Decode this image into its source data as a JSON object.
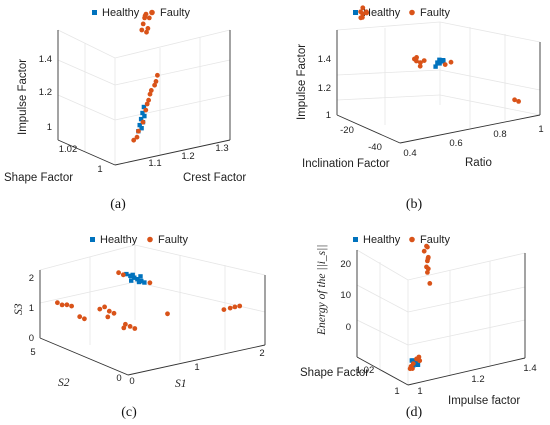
{
  "colors": {
    "healthy": "#0072BD",
    "faulty": "#D95319",
    "axis": "#333333",
    "grid": "#e6e6e6"
  },
  "panel_labels": [
    "(a)",
    "(b)",
    "(c)",
    "(d)"
  ],
  "chart_data": [
    {
      "type": "scatter",
      "panel": "(a)",
      "legend": [
        "Healthy",
        "Faulty"
      ],
      "legend_placement": "top",
      "xlabel": "Crest Factor",
      "ylabel": "Shape Factor",
      "zlabel": "Impulse Factor",
      "xticks": [
        "1.1",
        "1.2",
        "1.3"
      ],
      "yticks": [
        "1",
        "1.02"
      ],
      "zticks": [
        "1",
        "1.2",
        "1.4"
      ],
      "grid": true,
      "series": [
        {
          "name": "Healthy",
          "points": [
            [
              1.1,
              1.005,
              1.0
            ],
            [
              1.11,
              1.006,
              1.02
            ],
            [
              1.12,
              1.007,
              1.04
            ],
            [
              1.13,
              1.008,
              1.06
            ],
            [
              1.14,
              1.009,
              1.08
            ],
            [
              1.12,
              1.006,
              1.03
            ],
            [
              1.11,
              1.005,
              1.01
            ],
            [
              1.13,
              1.007,
              1.05
            ]
          ]
        },
        {
          "name": "Faulty",
          "points": [
            [
              1.09,
              1.004,
              0.98
            ],
            [
              1.1,
              1.005,
              1.0
            ],
            [
              1.12,
              1.006,
              1.03
            ],
            [
              1.14,
              1.008,
              1.07
            ],
            [
              1.16,
              1.01,
              1.1
            ],
            [
              1.18,
              1.012,
              1.13
            ],
            [
              1.2,
              1.013,
              1.16
            ],
            [
              1.17,
              1.011,
              1.12
            ],
            [
              1.15,
              1.009,
              1.09
            ],
            [
              1.19,
              1.012,
              1.15
            ],
            [
              1.08,
              1.004,
              0.97
            ],
            [
              1.21,
              1.014,
              1.18
            ],
            [
              1.19,
              1.018,
              1.4
            ],
            [
              1.2,
              1.019,
              1.42
            ],
            [
              1.21,
              1.02,
              1.43
            ],
            [
              1.18,
              1.017,
              1.38
            ],
            [
              1.22,
              1.02,
              1.41
            ],
            [
              1.2,
              1.018,
              1.36
            ],
            [
              1.21,
              1.019,
              1.37
            ],
            [
              1.19,
              1.017,
              1.44
            ]
          ]
        }
      ]
    },
    {
      "type": "scatter",
      "panel": "(b)",
      "legend": [
        "Healthy",
        "Faulty"
      ],
      "legend_placement": "top",
      "xlabel": "Ratio",
      "ylabel": "Inclination Factor",
      "zlabel": "Impulse Factor",
      "xticks": [
        "0.4",
        "0.6",
        "0.8",
        "1"
      ],
      "yticks": [
        "-40",
        "-20"
      ],
      "zticks": [
        "1",
        "1.2",
        "1.4"
      ],
      "grid": true,
      "series": [
        {
          "name": "Healthy",
          "points": [
            [
              0.55,
              -38,
              1.22
            ],
            [
              0.56,
              -38,
              1.23
            ],
            [
              0.57,
              -37,
              1.21
            ],
            [
              0.58,
              -38,
              1.22
            ],
            [
              0.55,
              -37,
              1.2
            ],
            [
              0.57,
              -39,
              1.23
            ]
          ]
        },
        {
          "name": "Faulty",
          "points": [
            [
              0.4,
              -12,
              1.37
            ],
            [
              0.41,
              -12,
              1.36
            ],
            [
              0.42,
              -11,
              1.38
            ],
            [
              0.4,
              -13,
              1.35
            ],
            [
              0.41,
              -11,
              1.34
            ],
            [
              0.43,
              -12,
              1.36
            ],
            [
              0.42,
              -13,
              1.37
            ],
            [
              0.48,
              -33,
              1.23
            ],
            [
              0.49,
              -33,
              1.22
            ],
            [
              0.5,
              -32,
              1.23
            ],
            [
              0.51,
              -33,
              1.21
            ],
            [
              0.52,
              -34,
              1.22
            ],
            [
              0.5,
              -34,
              1.2
            ],
            [
              0.58,
              -39,
              1.21
            ],
            [
              0.6,
              -40,
              1.22
            ],
            [
              0.9,
              -42,
              1.02
            ],
            [
              0.92,
              -42,
              1.01
            ]
          ]
        }
      ]
    },
    {
      "type": "scatter",
      "panel": "(c)",
      "legend": [
        "Healthy",
        "Faulty"
      ],
      "legend_placement": "top",
      "xlabel": "S1",
      "ylabel": "S2",
      "zlabel": "S3",
      "xticks": [
        "0",
        "1",
        "2"
      ],
      "yticks": [
        "0",
        "5"
      ],
      "zticks": [
        "0",
        "1",
        "2"
      ],
      "grid": true,
      "series": [
        {
          "name": "Healthy",
          "points": [
            [
              0.9,
              3.6,
              1.5
            ],
            [
              0.95,
              3.55,
              1.45
            ],
            [
              1.0,
              3.5,
              1.4
            ],
            [
              1.05,
              3.5,
              1.35
            ],
            [
              1.1,
              3.45,
              1.3
            ],
            [
              1.0,
              3.6,
              1.45
            ],
            [
              0.95,
              3.5,
              1.35
            ],
            [
              1.05,
              3.4,
              1.3
            ],
            [
              1.1,
              3.5,
              1.4
            ],
            [
              1.15,
              3.45,
              1.25
            ]
          ]
        },
        {
          "name": "Faulty",
          "points": [
            [
              0.8,
              3.7,
              1.55
            ],
            [
              0.85,
              3.6,
              1.5
            ],
            [
              1.2,
              3.3,
              1.25
            ],
            [
              0.1,
              4.8,
              0.9
            ],
            [
              0.15,
              4.7,
              0.85
            ],
            [
              0.2,
              4.6,
              0.85
            ],
            [
              0.25,
              4.5,
              0.82
            ],
            [
              0.2,
              3.8,
              0.7
            ],
            [
              0.25,
              3.7,
              0.65
            ],
            [
              0.6,
              3.8,
              0.8
            ],
            [
              0.65,
              3.7,
              0.7
            ],
            [
              0.7,
              3.6,
              0.65
            ],
            [
              0.6,
              3.6,
              0.6
            ],
            [
              0.55,
              3.9,
              0.75
            ],
            [
              0.6,
              2.5,
              0.6
            ],
            [
              0.65,
              2.4,
              0.55
            ],
            [
              0.7,
              2.3,
              0.5
            ],
            [
              0.6,
              2.6,
              0.5
            ],
            [
              1.2,
              2.2,
              0.7
            ],
            [
              1.9,
              1.4,
              0.7
            ],
            [
              1.95,
              1.2,
              0.75
            ],
            [
              2.0,
              1.1,
              0.78
            ],
            [
              2.05,
              1.0,
              0.8
            ]
          ]
        }
      ]
    },
    {
      "type": "scatter",
      "panel": "(d)",
      "legend": [
        "Healthy",
        "Faulty"
      ],
      "legend_placement": "top",
      "xlabel": "Impulse factor",
      "ylabel": "Shape Factor",
      "zlabel": "Energy of the ||i_s||",
      "xticks": [
        "1",
        "1.2",
        "1.4"
      ],
      "yticks": [
        "1",
        "1.02"
      ],
      "zticks": [
        "0",
        "10",
        "20"
      ],
      "grid": true,
      "series": [
        {
          "name": "Healthy",
          "points": [
            [
              1.01,
              1.001,
              0.5
            ],
            [
              1.02,
              1.002,
              0.8
            ],
            [
              1.03,
              1.002,
              1.2
            ],
            [
              1.02,
              1.001,
              0.6
            ],
            [
              1.04,
              1.003,
              1.0
            ],
            [
              1.01,
              1.002,
              1.4
            ],
            [
              1.03,
              1.001,
              0.4
            ],
            [
              1.02,
              1.003,
              1.1
            ]
          ]
        },
        {
          "name": "Faulty",
          "points": [
            [
              0.99,
              1.0,
              0.2
            ],
            [
              1.0,
              1.001,
              0.4
            ],
            [
              1.01,
              1.001,
              0.9
            ],
            [
              1.03,
              1.002,
              1.5
            ],
            [
              1.05,
              1.003,
              0.7
            ],
            [
              1.0,
              1.0,
              0.1
            ],
            [
              1.04,
              1.002,
              1.8
            ],
            [
              1.16,
              1.016,
              22.0
            ],
            [
              1.17,
              1.017,
              21.5
            ],
            [
              1.15,
              1.016,
              21.0
            ],
            [
              1.18,
              1.018,
              19.0
            ],
            [
              1.17,
              1.017,
              18.5
            ],
            [
              1.16,
              1.016,
              17.5
            ],
            [
              1.18,
              1.018,
              16.5
            ],
            [
              1.17,
              1.017,
              16.0
            ],
            [
              1.18,
              1.017,
              13.5
            ],
            [
              1.16,
              1.015,
              19.5
            ]
          ]
        }
      ]
    }
  ]
}
